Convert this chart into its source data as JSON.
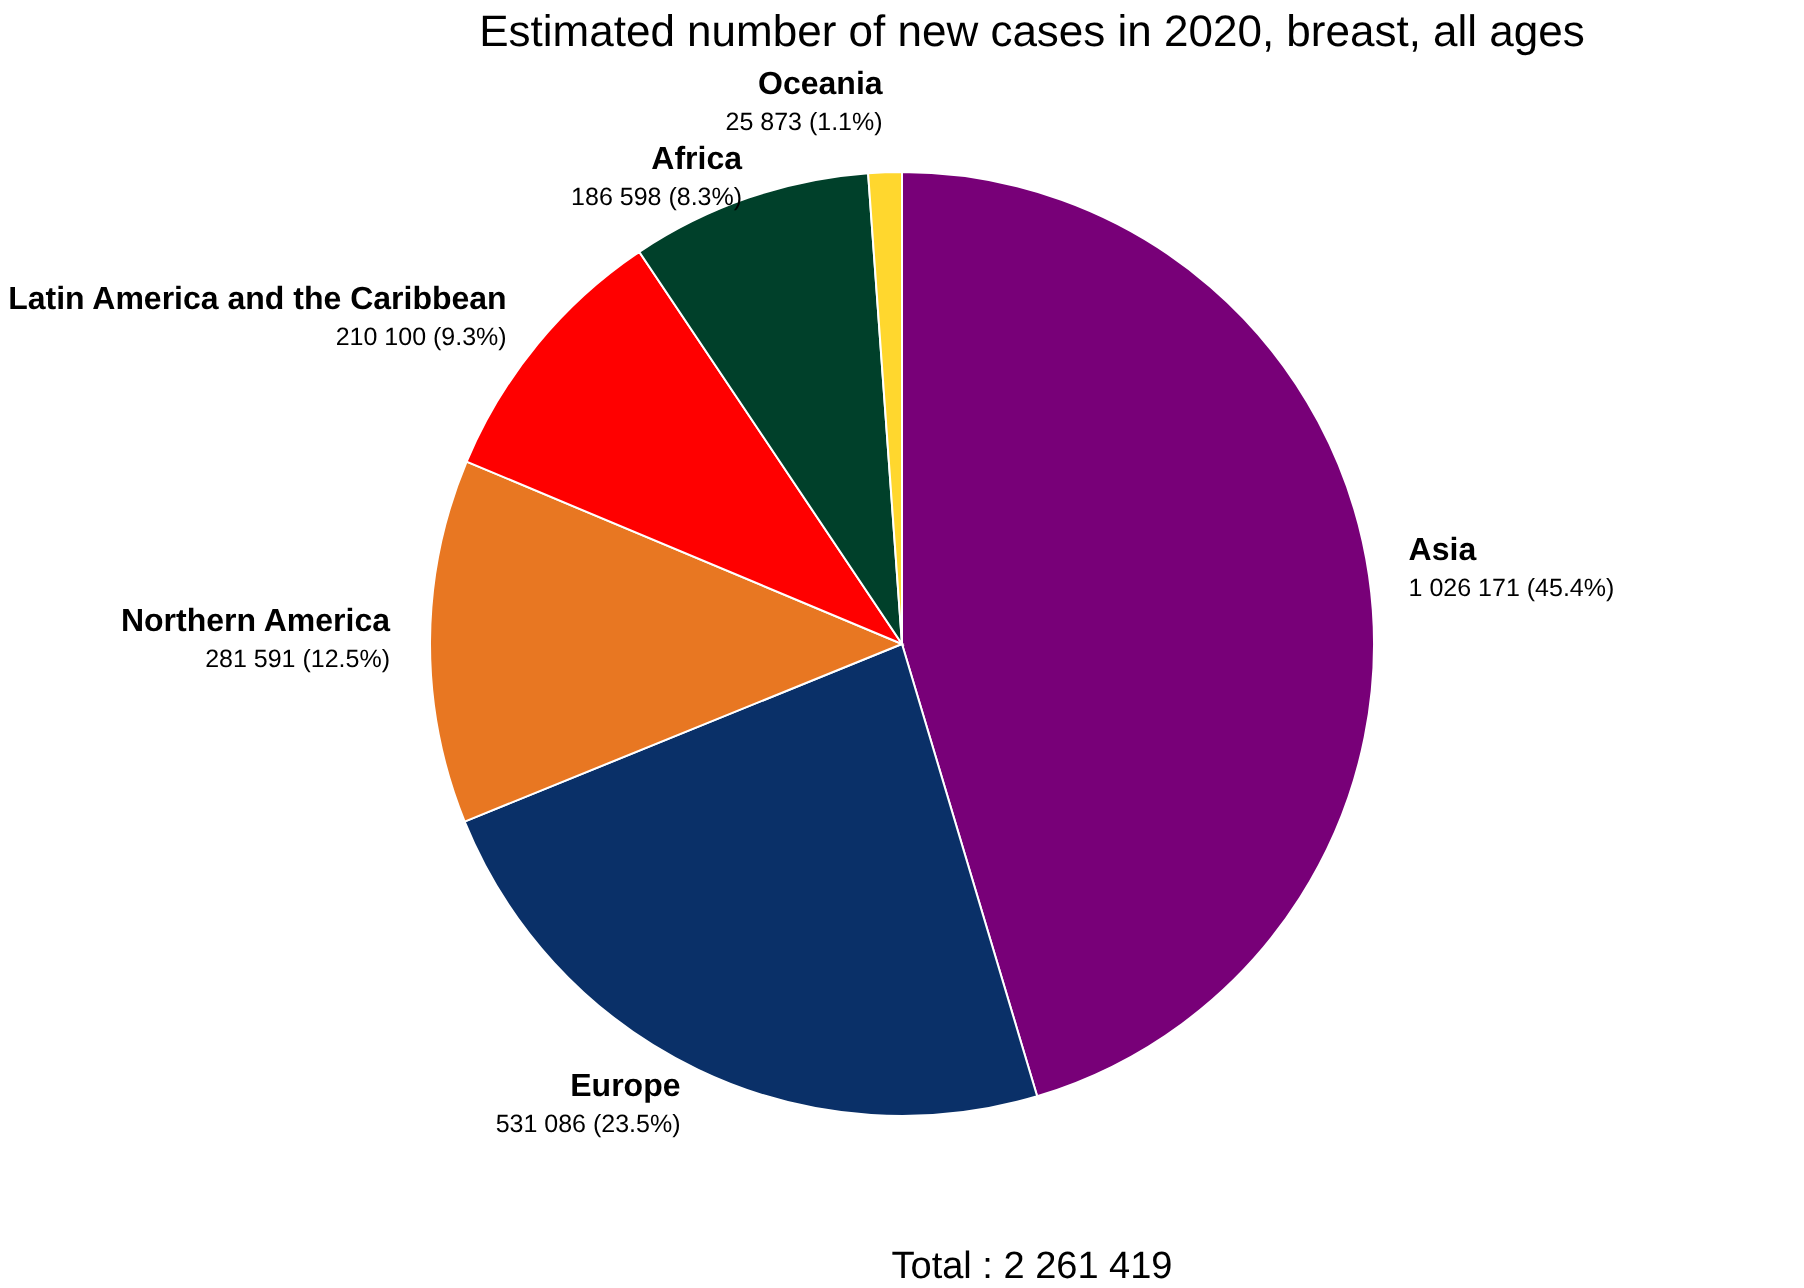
{
  "chart_data": {
    "type": "pie",
    "title": "Estimated number of new cases in 2020, breast, all ages",
    "categories": [
      "Asia",
      "Europe",
      "Northern America",
      "Latin America and the Caribbean",
      "Africa",
      "Oceania"
    ],
    "values": [
      1026171,
      531086,
      281591,
      210100,
      186598,
      25873
    ],
    "colors": [
      "#780078",
      "#0a3068",
      "#e87722",
      "#ff0000",
      "#00402a",
      "#ffd72e"
    ],
    "value_labels": [
      "1 026 171 (45.4%)",
      "531 086 (23.5%)",
      "281 591 (12.5%)",
      "210 100 (9.3%)",
      "186 598 (8.3%)",
      "25 873 (1.1%)"
    ],
    "annotations": [
      "Total : 2 261 419"
    ],
    "legend": false
  }
}
